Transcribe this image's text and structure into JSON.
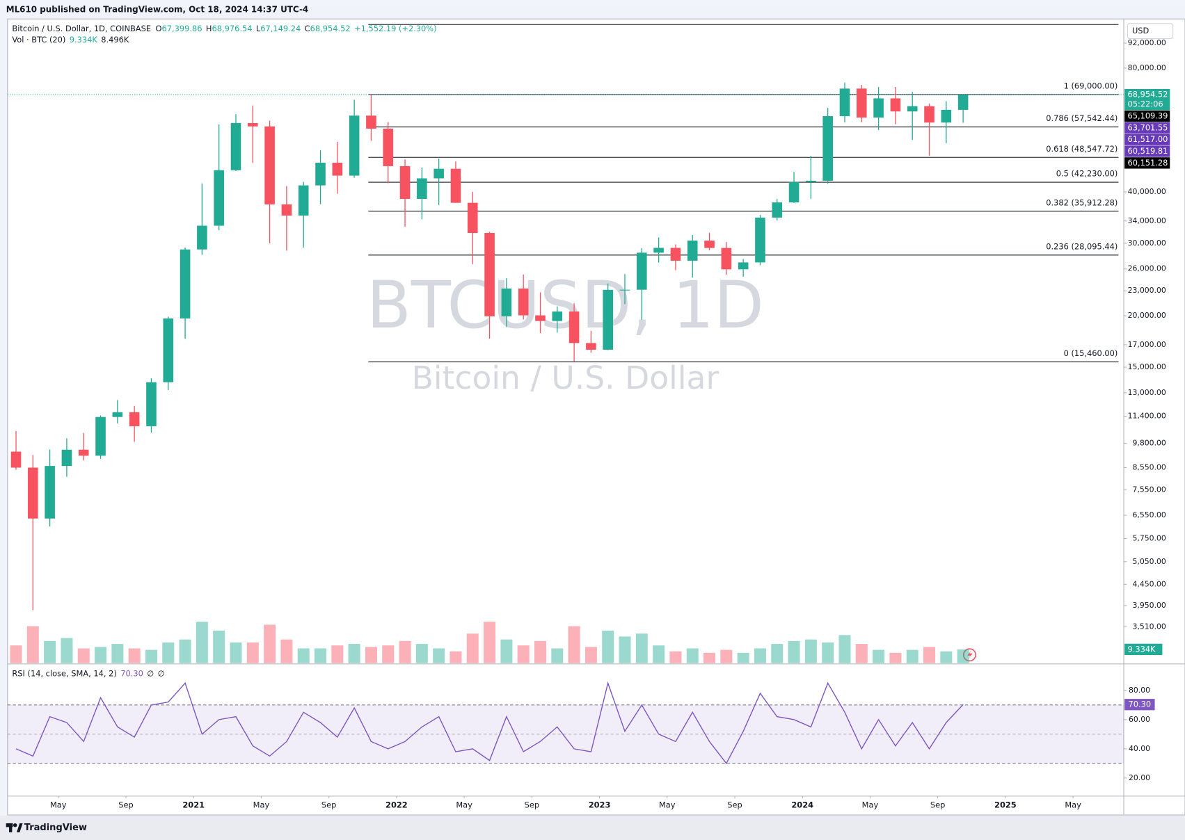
{
  "header": "ML610 published on TradingView.com, Oct 18, 2024 14:37 UTC-4",
  "footer": "TradingView",
  "chart_data": {
    "type": "candlestick",
    "symbol": "Bitcoin / U.S. Dollar, 1D, COINBASE",
    "quote": [
      {
        "key": "O",
        "value": "67,399.86"
      },
      {
        "key": "H",
        "value": "68,976.54"
      },
      {
        "key": "L",
        "value": "67,149.24"
      },
      {
        "key": "C",
        "value": "68,954.52"
      }
    ],
    "change": "+1,552.19 (+2.30%)",
    "watermark": [
      "BTCUSD, 1D",
      "Bitcoin / U.S. Dollar"
    ],
    "currency": "USD",
    "log_scale": true,
    "up_color": "#22ab94",
    "down_color": "#f7525f",
    "x": [
      "2020-02",
      "2020-03",
      "2020-04",
      "2020-05",
      "2020-06",
      "2020-07",
      "2020-08",
      "2020-09",
      "2020-10",
      "2020-11",
      "2020-12",
      "2021-01",
      "2021-02",
      "2021-03",
      "2021-04",
      "2021-05",
      "2021-06",
      "2021-07",
      "2021-08",
      "2021-09",
      "2021-10",
      "2021-11",
      "2021-12",
      "2022-01",
      "2022-02",
      "2022-03",
      "2022-04",
      "2022-05",
      "2022-06",
      "2022-07",
      "2022-08",
      "2022-09",
      "2022-10",
      "2022-11",
      "2022-12",
      "2023-01",
      "2023-02",
      "2023-03",
      "2023-04",
      "2023-05",
      "2023-06",
      "2023-07",
      "2023-08",
      "2023-09",
      "2023-10",
      "2023-11",
      "2023-12",
      "2024-01",
      "2024-02",
      "2024-03",
      "2024-04",
      "2024-05",
      "2024-06",
      "2024-07",
      "2024-08",
      "2024-09",
      "2024-10"
    ],
    "open": [
      9350,
      8550,
      6430,
      8630,
      9450,
      9140,
      11350,
      11660,
      10780,
      13790,
      19700,
      28990,
      33110,
      45170,
      58800,
      57720,
      37300,
      35040,
      41490,
      47100,
      43820,
      61310,
      57000,
      46210,
      38470,
      43160,
      45540,
      37640,
      31790,
      19940,
      23300,
      20050,
      19420,
      20490,
      17170,
      16540,
      23120,
      23140,
      28470,
      29250,
      27220,
      30470,
      29230,
      25940,
      26960,
      34650,
      37720,
      42280,
      42580,
      61130,
      71330,
      60640,
      67530,
      62760,
      64620,
      58970,
      63330
    ],
    "high": [
      10500,
      9180,
      9460,
      10070,
      10380,
      11450,
      12480,
      12070,
      14100,
      19900,
      29300,
      41950,
      58350,
      61800,
      64850,
      59600,
      41330,
      42320,
      50500,
      52950,
      67000,
      69000,
      59120,
      47990,
      45850,
      48190,
      47440,
      40030,
      31990,
      24670,
      25200,
      22800,
      21080,
      21450,
      18390,
      23960,
      25250,
      29190,
      31000,
      29820,
      31430,
      31840,
      30220,
      27480,
      35200,
      38450,
      44730,
      48970,
      64000,
      73800,
      72800,
      71960,
      72000,
      70000,
      65600,
      66500,
      68976.54
    ],
    "low": [
      8450,
      3850,
      6150,
      8120,
      8900,
      8980,
      10950,
      9880,
      10400,
      13200,
      17600,
      28130,
      32300,
      44950,
      47050,
      30000,
      28800,
      29300,
      37330,
      39600,
      43290,
      53250,
      42000,
      32930,
      34320,
      37170,
      37600,
      26700,
      17600,
      18780,
      19600,
      18150,
      18200,
      15460,
      16260,
      16500,
      21350,
      19550,
      26940,
      25810,
      24750,
      28860,
      25170,
      24900,
      26540,
      34100,
      37600,
      38500,
      41880,
      59000,
      59100,
      56550,
      58400,
      53500,
      49000,
      52550,
      58900
    ],
    "close": [
      8550,
      6430,
      8630,
      9450,
      9140,
      11350,
      11660,
      10780,
      13790,
      19700,
      28990,
      33110,
      45170,
      58800,
      57720,
      37300,
      35040,
      41490,
      47100,
      43820,
      61310,
      57000,
      46210,
      38470,
      43160,
      45540,
      37640,
      31790,
      19940,
      23300,
      20050,
      19420,
      20490,
      17170,
      16540,
      23120,
      23140,
      28470,
      29250,
      27220,
      30470,
      29230,
      25940,
      26960,
      34650,
      37720,
      42280,
      42580,
      61130,
      71330,
      60640,
      67530,
      62760,
      64620,
      58970,
      63330,
      68954.52
    ],
    "xlim": [
      "2020-02",
      "2025-07"
    ],
    "xticks": [
      {
        "value": "2020-05",
        "label": "May"
      },
      {
        "value": "2020-09",
        "label": "Sep"
      },
      {
        "value": "2021-01",
        "label": "2021"
      },
      {
        "value": "2021-05",
        "label": "May"
      },
      {
        "value": "2021-09",
        "label": "Sep"
      },
      {
        "value": "2022-01",
        "label": "2022"
      },
      {
        "value": "2022-05",
        "label": "May"
      },
      {
        "value": "2022-09",
        "label": "Sep"
      },
      {
        "value": "2023-01",
        "label": "2023"
      },
      {
        "value": "2023-05",
        "label": "May"
      },
      {
        "value": "2023-09",
        "label": "Sep"
      },
      {
        "value": "2024-01",
        "label": "2024"
      },
      {
        "value": "2024-05",
        "label": "May"
      },
      {
        "value": "2024-09",
        "label": "Sep"
      },
      {
        "value": "2025-01",
        "label": "2025"
      },
      {
        "value": "2025-05",
        "label": "May"
      }
    ],
    "ylim": [
      2862,
      105300
    ],
    "yticks": [
      {
        "value": 92000,
        "label": "92,000.00"
      },
      {
        "value": 80000,
        "label": "80,000.00"
      },
      {
        "value": 40000,
        "label": "40,000.00"
      },
      {
        "value": 34000,
        "label": "34,000.00"
      },
      {
        "value": 30000,
        "label": "30,000.00"
      },
      {
        "value": 26000,
        "label": "26,000.00"
      },
      {
        "value": 23000,
        "label": "23,000.00"
      },
      {
        "value": 20000,
        "label": "20,000.00"
      },
      {
        "value": 17000,
        "label": "17,000.00"
      },
      {
        "value": 15000,
        "label": "15,000.00"
      },
      {
        "value": 13000,
        "label": "13,000.00"
      },
      {
        "value": 11400,
        "label": "11,400.00"
      },
      {
        "value": 9800,
        "label": "9,800.00"
      },
      {
        "value": 8550,
        "label": "8,550.00"
      },
      {
        "value": 7550,
        "label": "7,550.00"
      },
      {
        "value": 6550,
        "label": "6,550.00"
      },
      {
        "value": 5750,
        "label": "5,750.00"
      },
      {
        "value": 5050,
        "label": "5,050.00"
      },
      {
        "value": 4450,
        "label": "4,450.00"
      },
      {
        "value": 3950,
        "label": "3,950.00"
      },
      {
        "value": 3510,
        "label": "3,510.00"
      }
    ],
    "fib_levels": [
      {
        "value": 102087.72
      },
      {
        "value": 69000,
        "label": "1 (69,000.00)"
      },
      {
        "value": 57542.44,
        "label": "0.786 (57,542.44)"
      },
      {
        "value": 48547.72,
        "label": "0.618 (48,547.72)"
      },
      {
        "value": 42230,
        "label": "0.5 (42,230.00)"
      },
      {
        "value": 35912.28,
        "label": "0.382 (35,912.28)"
      },
      {
        "value": 28095.44,
        "label": "0.236 (28,095.44)"
      },
      {
        "value": 15460,
        "label": "0 (15,460.00)"
      }
    ],
    "price_labels": [
      {
        "value": 68954.52,
        "label": "68,954.52",
        "color": "#22ab94"
      },
      {
        "value": 65109.39,
        "label": "65,109.39",
        "color": "#000000"
      },
      {
        "value": 63701.55,
        "label": "63,701.55",
        "color": "#673ab7"
      },
      {
        "value": 61517,
        "label": "61,517.00",
        "color": "#673ab7"
      },
      {
        "value": 60519.81,
        "label": "60,519.81",
        "color": "#673ab7"
      },
      {
        "value": 60151.28,
        "label": "60,151.28",
        "color": "#000000"
      }
    ],
    "countdown": "05:22:06",
    "volume": {
      "name": "Vol · BTC (20)",
      "last": "9.334K",
      "ma": "8.496K",
      "ylim": [
        0,
        100
      ],
      "values": [
        12,
        25,
        15,
        17,
        10,
        11,
        13,
        10,
        9,
        14,
        16,
        28,
        22,
        14,
        14,
        26,
        16,
        10,
        10,
        12,
        13,
        11,
        12,
        15,
        13,
        10,
        8,
        20,
        28,
        16,
        12,
        15,
        10,
        25,
        11,
        22,
        18,
        20,
        12,
        8,
        10,
        7,
        9,
        7,
        10,
        13,
        15,
        16,
        14,
        19,
        13,
        9,
        7,
        9,
        11,
        8,
        9.334
      ]
    },
    "rsi": {
      "name": "RSI (14, close, SMA, 14, 2)",
      "last": "70.30",
      "na": [
        "∅",
        "∅"
      ],
      "color": "#7e57c2",
      "band": [
        30,
        70
      ],
      "mid": 50,
      "ylim": [
        7.6,
        97.6
      ],
      "yticks": [
        {
          "value": 80,
          "label": "80.00"
        },
        {
          "value": 60,
          "label": "60.00"
        },
        {
          "value": 40,
          "label": "40.00"
        },
        {
          "value": 20,
          "label": "20.00"
        }
      ],
      "values": [
        40,
        35,
        62,
        58,
        45,
        75,
        55,
        48,
        70,
        72,
        85,
        50,
        60,
        62,
        42,
        35,
        45,
        65,
        58,
        48,
        68,
        45,
        40,
        45,
        55,
        62,
        38,
        40,
        32,
        62,
        38,
        45,
        55,
        40,
        38,
        85,
        52,
        70,
        50,
        45,
        65,
        45,
        30,
        52,
        78,
        62,
        60,
        55,
        85,
        65,
        40,
        60,
        42,
        58,
        40,
        58,
        70.3
      ]
    }
  }
}
